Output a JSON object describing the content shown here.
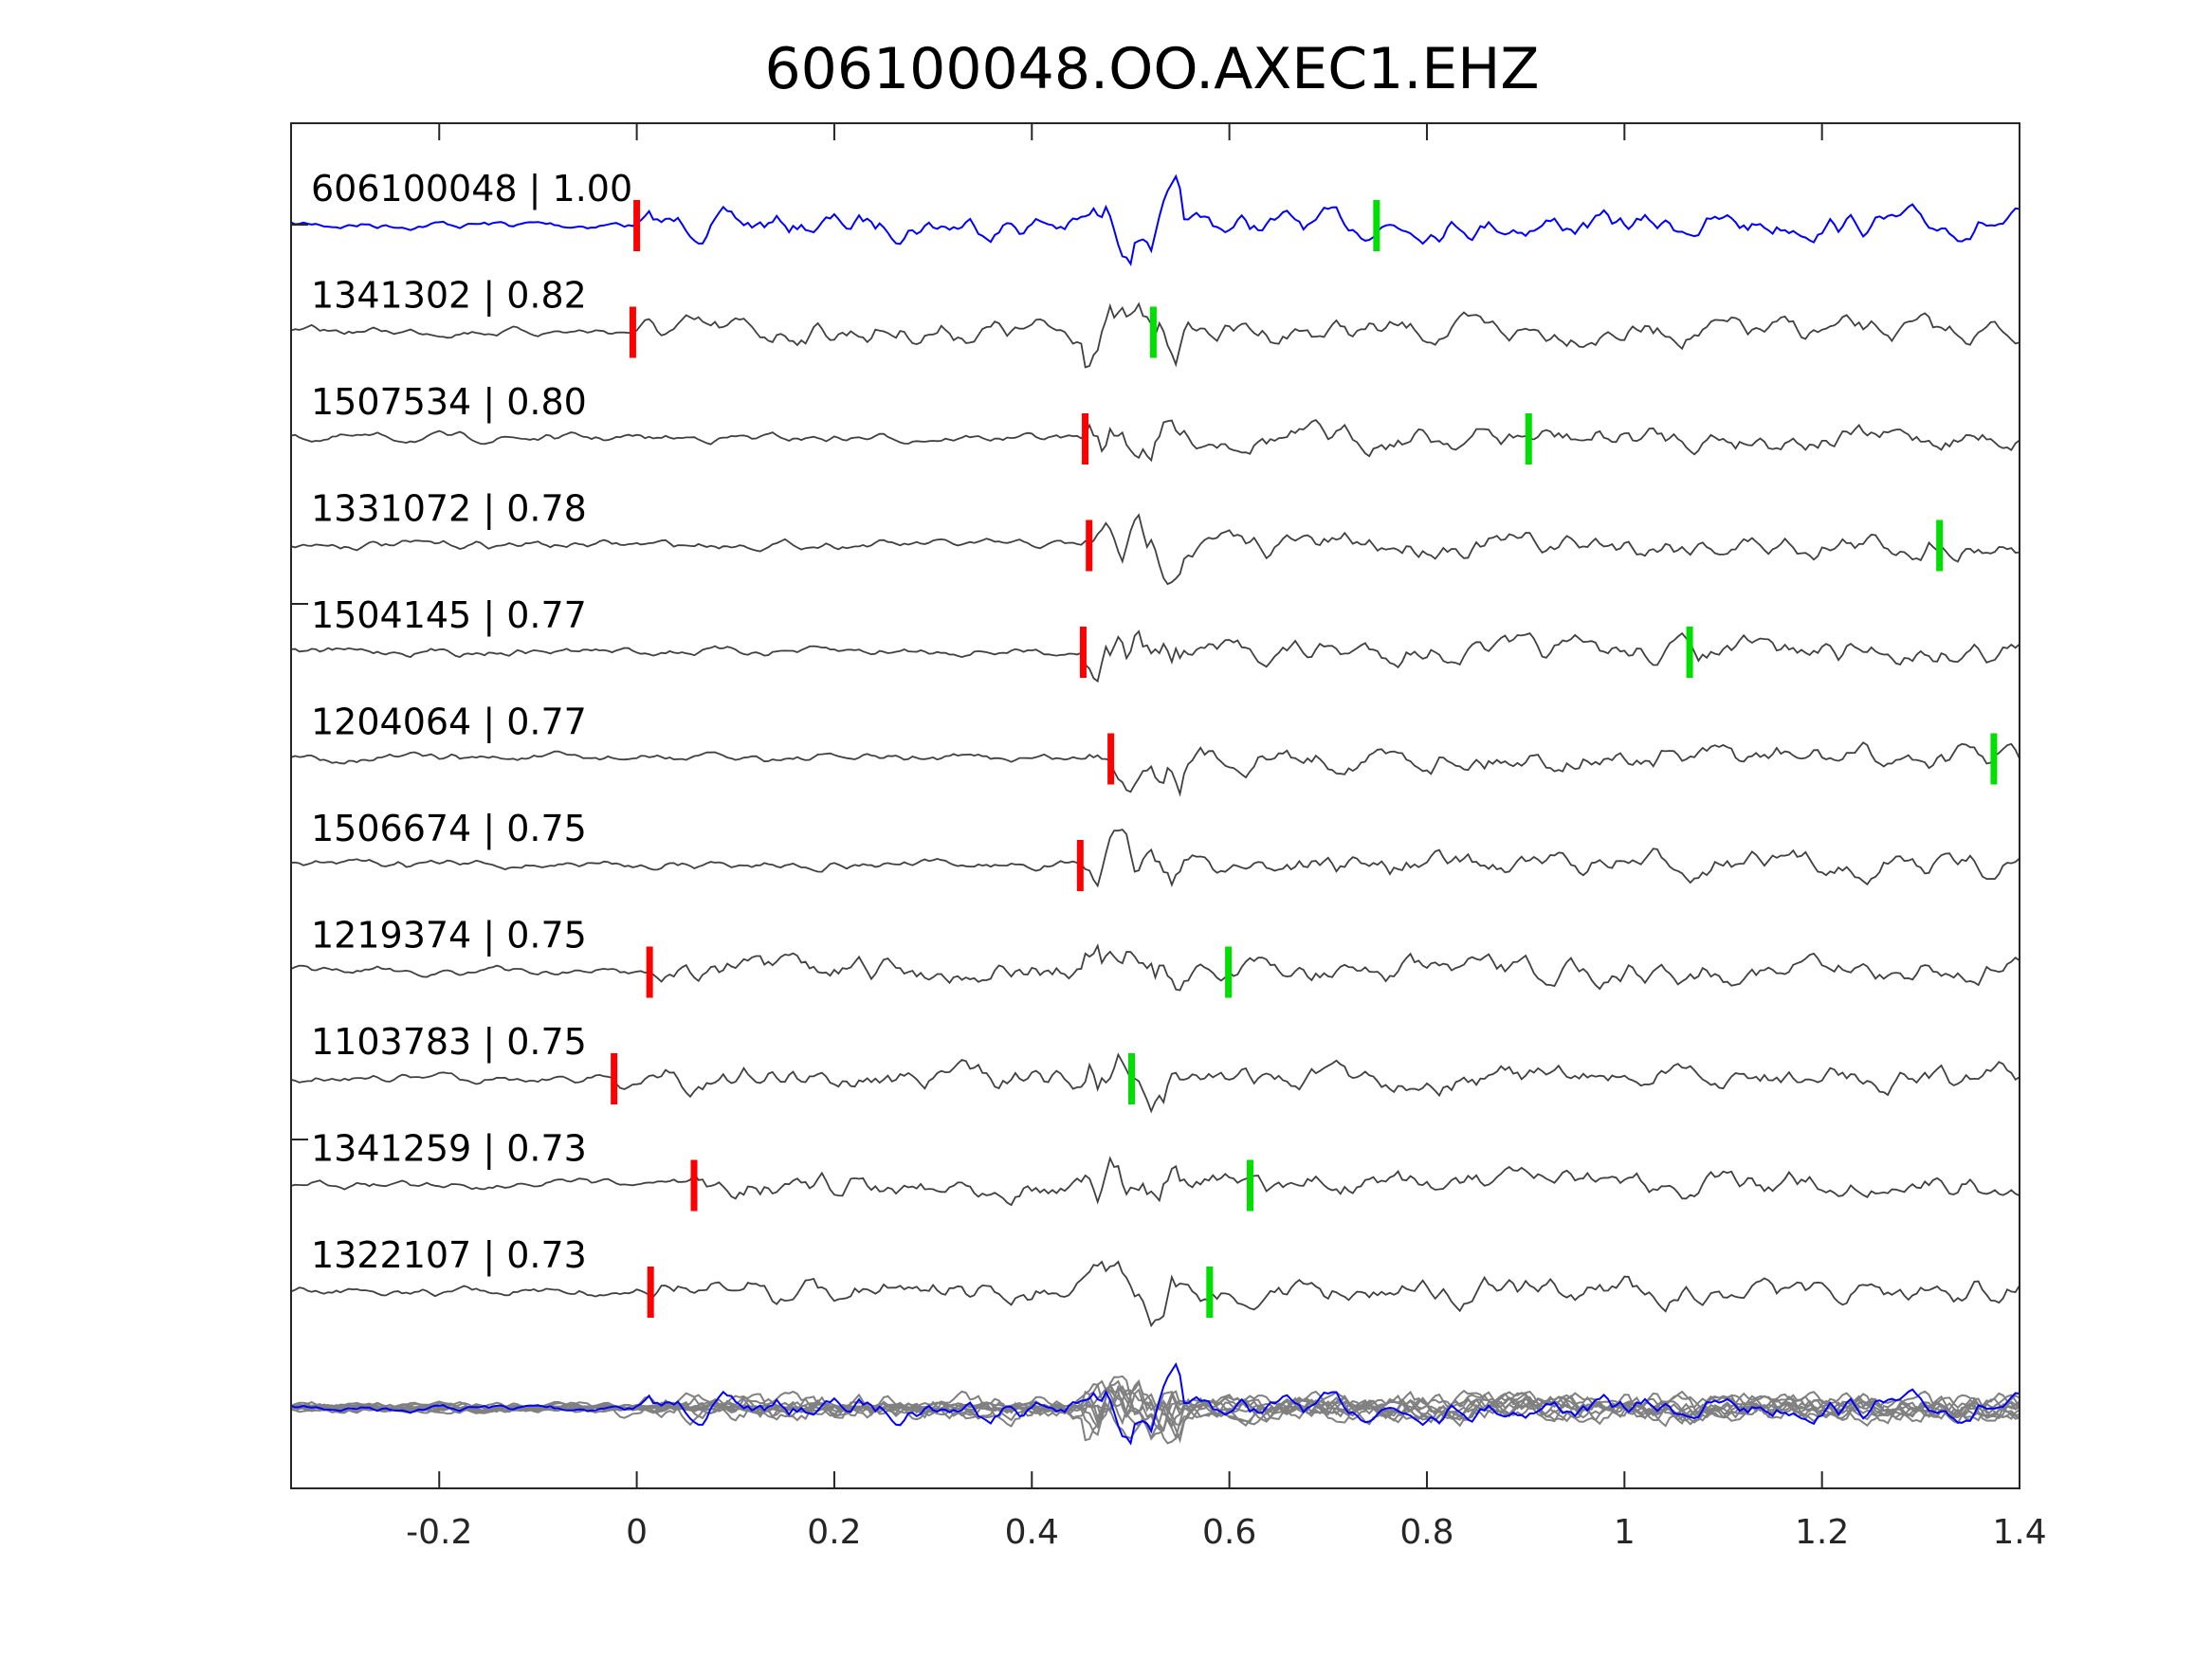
{
  "chart_data": {
    "type": "line",
    "title": "606100048.OO.AXEC1.EHZ",
    "xlabel": "",
    "ylabel": "",
    "xlim": [
      -0.35,
      1.4
    ],
    "xticks": [
      "-0.2",
      "0",
      "0.2",
      "0.4",
      "0.6",
      "0.8",
      "1",
      "1.2",
      "1.4"
    ],
    "xtick_values": [
      -0.2,
      0,
      0.2,
      0.4,
      0.6,
      0.8,
      1,
      1.2,
      1.4
    ],
    "grid": false,
    "colors": {
      "template": "#0000ff",
      "match": "#404040",
      "stack": "#808080",
      "p_pick": "#ff0000",
      "s_pick": "#00e000"
    },
    "traces": [
      {
        "label": "606100048 | 1.00",
        "template": true,
        "p_pick": 0.0,
        "s_pick": 0.749
      },
      {
        "label": "1341302 | 0.82",
        "p_pick": -0.004,
        "s_pick": 0.523
      },
      {
        "label": "1507534 | 0.80",
        "p_pick": 0.454,
        "s_pick": 0.903
      },
      {
        "label": "1331072 | 0.78",
        "p_pick": 0.458,
        "s_pick": 1.319
      },
      {
        "label": "1504145 | 0.77",
        "p_pick": 0.452,
        "s_pick": 1.066
      },
      {
        "label": "1204064 | 0.77",
        "p_pick": 0.48,
        "s_pick": 1.374
      },
      {
        "label": "1506674 | 0.75",
        "p_pick": 0.449,
        "s_pick": null
      },
      {
        "label": "1219374 | 0.75",
        "p_pick": 0.013,
        "s_pick": 0.599
      },
      {
        "label": "1103783 | 0.75",
        "p_pick": -0.023,
        "s_pick": 0.501
      },
      {
        "label": "1341259 | 0.73",
        "p_pick": 0.058,
        "s_pick": 0.621
      },
      {
        "label": "1322107 | 0.73",
        "p_pick": 0.014,
        "s_pick": 0.58
      }
    ]
  }
}
